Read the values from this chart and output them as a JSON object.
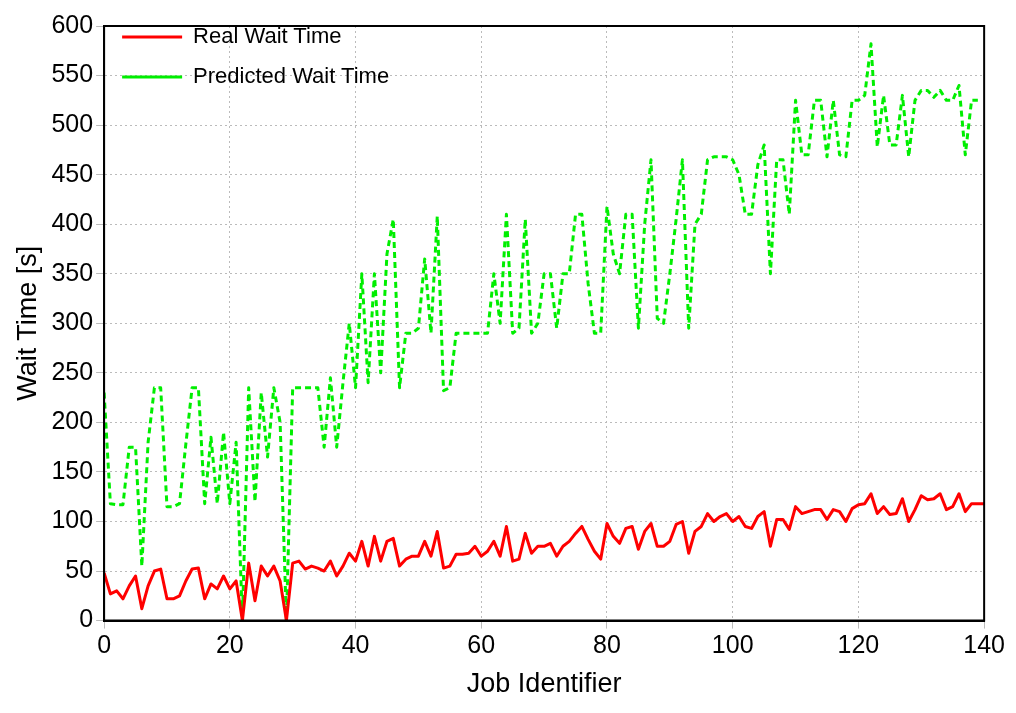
{
  "chart_data": {
    "type": "line",
    "xlabel": "Job Identifier",
    "ylabel": "Wait Time [s]",
    "xlim": [
      0,
      140
    ],
    "xticks": [
      0,
      20,
      40,
      60,
      80,
      100,
      120,
      140
    ],
    "ylim": [
      0,
      600
    ],
    "yticks": [
      0,
      50,
      100,
      150,
      200,
      250,
      300,
      350,
      400,
      450,
      500,
      550,
      600
    ],
    "grid": true,
    "legend": "top left",
    "marker": "none",
    "series": [
      {
        "name": "Real Wait Time",
        "color": "#ff0000",
        "line_style": "solid",
        "x": [
          0,
          1,
          2,
          3,
          4,
          5,
          6,
          7,
          8,
          9,
          10,
          11,
          12,
          13,
          14,
          15,
          16,
          17,
          18,
          19,
          20,
          21,
          22,
          23,
          24,
          25,
          26,
          27,
          28,
          29,
          30,
          31,
          32,
          33,
          34,
          35,
          36,
          37,
          38,
          39,
          40,
          41,
          42,
          43,
          44,
          45,
          46,
          47,
          48,
          49,
          50,
          51,
          52,
          53,
          54,
          55,
          56,
          57,
          58,
          59,
          60,
          61,
          62,
          63,
          64,
          65,
          66,
          67,
          68,
          69,
          70,
          71,
          72,
          73,
          74,
          75,
          76,
          77,
          78,
          79,
          80,
          81,
          82,
          83,
          84,
          85,
          86,
          87,
          88,
          89,
          90,
          91,
          92,
          93,
          94,
          95,
          96,
          97,
          98,
          99,
          100,
          101,
          102,
          103,
          104,
          105,
          106,
          107,
          108,
          109,
          110,
          111,
          112,
          113,
          114,
          115,
          116,
          117,
          118,
          119,
          120,
          121,
          122,
          123,
          124,
          125,
          126,
          127,
          128,
          129,
          130,
          131,
          132,
          133,
          134,
          135,
          136,
          137,
          138,
          139,
          140
        ],
        "values": [
          48,
          27,
          30,
          22,
          35,
          45,
          12,
          35,
          50,
          52,
          22,
          22,
          25,
          40,
          52,
          53,
          22,
          37,
          32,
          45,
          32,
          40,
          0,
          58,
          20,
          55,
          45,
          55,
          40,
          0,
          58,
          60,
          52,
          55,
          53,
          50,
          60,
          45,
          55,
          68,
          60,
          80,
          55,
          85,
          60,
          80,
          83,
          55,
          62,
          65,
          65,
          80,
          65,
          90,
          53,
          55,
          67,
          67,
          68,
          75,
          65,
          70,
          80,
          65,
          95,
          60,
          62,
          88,
          68,
          75,
          75,
          78,
          65,
          75,
          80,
          88,
          95,
          82,
          70,
          62,
          98,
          85,
          78,
          93,
          95,
          72,
          90,
          98,
          75,
          75,
          80,
          97,
          100,
          68,
          90,
          95,
          108,
          100,
          105,
          108,
          100,
          105,
          95,
          93,
          105,
          110,
          75,
          102,
          102,
          92,
          115,
          108,
          110,
          112,
          112,
          102,
          112,
          110,
          100,
          113,
          117,
          118,
          128,
          108,
          115,
          107,
          108,
          123,
          100,
          112,
          126,
          122,
          123,
          128,
          112,
          115,
          128,
          110,
          118,
          118,
          118
        ]
      },
      {
        "name": "Predicted Wait Time",
        "color": "#00ee00",
        "line_style": "dashed",
        "x": [
          0,
          1,
          2,
          3,
          4,
          5,
          6,
          7,
          8,
          9,
          10,
          11,
          12,
          13,
          14,
          15,
          16,
          17,
          18,
          19,
          20,
          21,
          22,
          23,
          24,
          25,
          26,
          27,
          28,
          29,
          30,
          31,
          32,
          33,
          34,
          35,
          36,
          37,
          38,
          39,
          40,
          41,
          42,
          43,
          44,
          45,
          46,
          47,
          48,
          49,
          50,
          51,
          52,
          53,
          54,
          55,
          56,
          57,
          58,
          59,
          60,
          61,
          62,
          63,
          64,
          65,
          66,
          67,
          68,
          69,
          70,
          71,
          72,
          73,
          74,
          75,
          76,
          77,
          78,
          79,
          80,
          81,
          82,
          83,
          84,
          85,
          86,
          87,
          88,
          89,
          90,
          91,
          92,
          93,
          94,
          95,
          96,
          97,
          98,
          99,
          100,
          101,
          102,
          103,
          104,
          105,
          106,
          107,
          108,
          109,
          110,
          111,
          112,
          113,
          114,
          115,
          116,
          117,
          118,
          119,
          120,
          121,
          122,
          123,
          124,
          125,
          126,
          127,
          128,
          129,
          130,
          131,
          132,
          133,
          134,
          135,
          136,
          137,
          138,
          139
        ],
        "values": [
          230,
          118,
          117,
          117,
          175,
          175,
          55,
          180,
          235,
          235,
          115,
          115,
          118,
          178,
          235,
          235,
          118,
          185,
          118,
          190,
          118,
          180,
          0,
          235,
          120,
          230,
          165,
          235,
          200,
          0,
          235,
          235,
          235,
          235,
          235,
          175,
          245,
          175,
          240,
          300,
          235,
          350,
          240,
          350,
          250,
          370,
          405,
          235,
          290,
          290,
          295,
          365,
          290,
          408,
          232,
          235,
          290,
          290,
          290,
          290,
          290,
          290,
          350,
          300,
          410,
          290,
          295,
          405,
          290,
          300,
          350,
          350,
          295,
          350,
          350,
          410,
          410,
          340,
          290,
          290,
          418,
          370,
          350,
          410,
          410,
          295,
          400,
          465,
          305,
          300,
          350,
          405,
          465,
          295,
          400,
          410,
          465,
          468,
          468,
          468,
          465,
          450,
          410,
          410,
          460,
          480,
          350,
          465,
          465,
          410,
          525,
          470,
          470,
          525,
          525,
          468,
          525,
          470,
          468,
          525,
          525,
          530,
          582,
          478,
          530,
          480,
          480,
          530,
          468,
          525,
          535,
          535,
          528,
          535,
          525,
          525,
          540,
          470,
          525,
          525
        ]
      }
    ]
  }
}
